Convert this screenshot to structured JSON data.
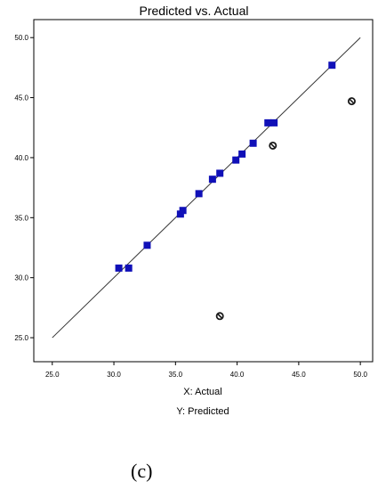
{
  "chart_data": {
    "type": "scatter",
    "title": "Predicted vs. Actual",
    "xlabel": "X: Actual",
    "ylabel": "Y: Predicted",
    "xlim": [
      23.5,
      51.0
    ],
    "ylim": [
      23.0,
      51.5
    ],
    "x_ticks": [
      "25.0",
      "30.0",
      "35.0",
      "40.0",
      "45.0",
      "50.0"
    ],
    "y_ticks": [
      "25.0",
      "30.0",
      "35.0",
      "40.0",
      "45.0",
      "50.0"
    ],
    "reference_line": {
      "from": [
        25.0,
        25.0
      ],
      "to": [
        50.0,
        50.0
      ]
    },
    "series": [
      {
        "marker": "square",
        "color": "#1010b8",
        "points": [
          [
            30.4,
            30.8
          ],
          [
            31.2,
            30.8
          ],
          [
            32.7,
            32.7
          ],
          [
            35.4,
            35.3
          ],
          [
            35.6,
            35.6
          ],
          [
            36.9,
            37.0
          ],
          [
            38.0,
            38.2
          ],
          [
            38.6,
            38.7
          ],
          [
            39.9,
            39.8
          ],
          [
            40.4,
            40.3
          ],
          [
            41.3,
            41.2
          ],
          [
            42.5,
            42.9
          ],
          [
            43.0,
            42.9
          ],
          [
            47.7,
            47.7
          ]
        ]
      },
      {
        "marker": "circle-slash",
        "color": "#1a1a1a",
        "points": [
          [
            38.6,
            26.8
          ],
          [
            42.9,
            41.0
          ],
          [
            49.3,
            44.7
          ]
        ]
      }
    ],
    "grid": false
  },
  "panel_label": "(c)"
}
